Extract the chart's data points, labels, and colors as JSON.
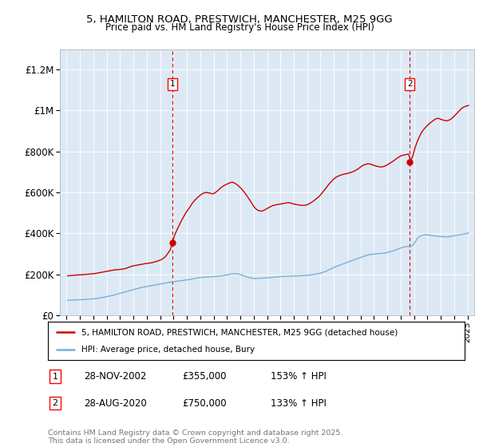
{
  "title_line1": "5, HAMILTON ROAD, PRESTWICH, MANCHESTER, M25 9GG",
  "title_line2": "Price paid vs. HM Land Registry's House Price Index (HPI)",
  "ylim": [
    0,
    1300000
  ],
  "yticks": [
    0,
    200000,
    400000,
    600000,
    800000,
    1000000,
    1200000
  ],
  "ytick_labels": [
    "£0",
    "£200K",
    "£400K",
    "£600K",
    "£800K",
    "£1M",
    "£1.2M"
  ],
  "plot_bg_color": "#dce9f5",
  "red_color": "#cc0000",
  "blue_color": "#7ab0d4",
  "marker1_year": 2002.92,
  "marker2_year": 2020.67,
  "marker1_label": "1",
  "marker2_label": "2",
  "marker1_date": "28-NOV-2002",
  "marker1_price": "£355,000",
  "marker1_hpi": "153% ↑ HPI",
  "marker1_value": 355000,
  "marker2_date": "28-AUG-2020",
  "marker2_price": "£750,000",
  "marker2_hpi": "133% ↑ HPI",
  "marker2_value": 750000,
  "legend_label_red": "5, HAMILTON ROAD, PRESTWICH, MANCHESTER, M25 9GG (detached house)",
  "legend_label_blue": "HPI: Average price, detached house, Bury",
  "footer_text": "Contains HM Land Registry data © Crown copyright and database right 2025.\nThis data is licensed under the Open Government Licence v3.0.",
  "red_x": [
    1995.08,
    1995.25,
    1995.42,
    1995.58,
    1995.75,
    1995.92,
    1996.08,
    1996.25,
    1996.42,
    1996.58,
    1996.75,
    1996.92,
    1997.08,
    1997.25,
    1997.42,
    1997.58,
    1997.75,
    1997.92,
    1998.08,
    1998.25,
    1998.42,
    1998.58,
    1998.75,
    1998.92,
    1999.08,
    1999.25,
    1999.42,
    1999.58,
    1999.75,
    1999.92,
    2000.08,
    2000.25,
    2000.42,
    2000.58,
    2000.75,
    2000.92,
    2001.08,
    2001.25,
    2001.42,
    2001.58,
    2001.75,
    2001.92,
    2002.08,
    2002.25,
    2002.42,
    2002.58,
    2002.75,
    2002.92,
    2003.08,
    2003.25,
    2003.42,
    2003.58,
    2003.75,
    2003.92,
    2004.08,
    2004.25,
    2004.42,
    2004.58,
    2004.75,
    2004.92,
    2005.08,
    2005.25,
    2005.42,
    2005.58,
    2005.75,
    2005.92,
    2006.08,
    2006.25,
    2006.42,
    2006.58,
    2006.75,
    2006.92,
    2007.08,
    2007.25,
    2007.42,
    2007.58,
    2007.75,
    2007.92,
    2008.08,
    2008.25,
    2008.42,
    2008.58,
    2008.75,
    2008.92,
    2009.08,
    2009.25,
    2009.42,
    2009.58,
    2009.75,
    2009.92,
    2010.08,
    2010.25,
    2010.42,
    2010.58,
    2010.75,
    2010.92,
    2011.08,
    2011.25,
    2011.42,
    2011.58,
    2011.75,
    2011.92,
    2012.08,
    2012.25,
    2012.42,
    2012.58,
    2012.75,
    2012.92,
    2013.08,
    2013.25,
    2013.42,
    2013.58,
    2013.75,
    2013.92,
    2014.08,
    2014.25,
    2014.42,
    2014.58,
    2014.75,
    2014.92,
    2015.08,
    2015.25,
    2015.42,
    2015.58,
    2015.75,
    2015.92,
    2016.08,
    2016.25,
    2016.42,
    2016.58,
    2016.75,
    2016.92,
    2017.08,
    2017.25,
    2017.42,
    2017.58,
    2017.75,
    2017.92,
    2018.08,
    2018.25,
    2018.42,
    2018.58,
    2018.75,
    2018.92,
    2019.08,
    2019.25,
    2019.42,
    2019.58,
    2019.75,
    2019.92,
    2020.08,
    2020.25,
    2020.42,
    2020.58,
    2020.75,
    2020.92,
    2021.08,
    2021.25,
    2021.42,
    2021.58,
    2021.75,
    2021.92,
    2022.08,
    2022.25,
    2022.42,
    2022.58,
    2022.75,
    2022.92,
    2023.08,
    2023.25,
    2023.42,
    2023.58,
    2023.75,
    2023.92,
    2024.08,
    2024.25,
    2024.42,
    2024.58,
    2024.75,
    2024.92,
    2025.08
  ],
  "red_y": [
    192000,
    193000,
    194000,
    195000,
    196000,
    197000,
    197000,
    198000,
    199000,
    200000,
    201000,
    202000,
    203000,
    205000,
    207000,
    209000,
    211000,
    213000,
    215000,
    217000,
    219000,
    221000,
    222000,
    223000,
    224000,
    226000,
    228000,
    232000,
    236000,
    240000,
    242000,
    244000,
    246000,
    248000,
    250000,
    252000,
    253000,
    255000,
    257000,
    260000,
    263000,
    267000,
    271000,
    278000,
    288000,
    302000,
    318000,
    355000,
    390000,
    415000,
    438000,
    460000,
    480000,
    500000,
    515000,
    530000,
    548000,
    560000,
    572000,
    582000,
    590000,
    596000,
    600000,
    598000,
    596000,
    592000,
    597000,
    605000,
    615000,
    625000,
    632000,
    638000,
    643000,
    648000,
    650000,
    645000,
    638000,
    628000,
    618000,
    605000,
    590000,
    575000,
    558000,
    540000,
    525000,
    515000,
    510000,
    508000,
    512000,
    518000,
    524000,
    530000,
    535000,
    538000,
    540000,
    542000,
    544000,
    546000,
    548000,
    550000,
    548000,
    545000,
    542000,
    540000,
    538000,
    537000,
    536000,
    538000,
    542000,
    548000,
    555000,
    563000,
    572000,
    582000,
    594000,
    608000,
    622000,
    636000,
    649000,
    661000,
    670000,
    677000,
    682000,
    686000,
    689000,
    691000,
    694000,
    697000,
    701000,
    706000,
    712000,
    720000,
    728000,
    734000,
    738000,
    740000,
    738000,
    734000,
    730000,
    727000,
    725000,
    724000,
    727000,
    732000,
    738000,
    745000,
    752000,
    760000,
    768000,
    775000,
    780000,
    783000,
    785000,
    787000,
    756000,
    780000,
    820000,
    850000,
    875000,
    895000,
    910000,
    922000,
    932000,
    942000,
    950000,
    958000,
    962000,
    960000,
    955000,
    952000,
    950000,
    952000,
    958000,
    967000,
    978000,
    990000,
    1002000,
    1012000,
    1018000,
    1022000,
    1025000
  ],
  "blue_x": [
    1995.08,
    1995.25,
    1995.42,
    1995.58,
    1995.75,
    1995.92,
    1996.08,
    1996.25,
    1996.42,
    1996.58,
    1996.75,
    1996.92,
    1997.08,
    1997.25,
    1997.42,
    1997.58,
    1997.75,
    1997.92,
    1998.08,
    1998.25,
    1998.42,
    1998.58,
    1998.75,
    1998.92,
    1999.08,
    1999.25,
    1999.42,
    1999.58,
    1999.75,
    1999.92,
    2000.08,
    2000.25,
    2000.42,
    2000.58,
    2000.75,
    2000.92,
    2001.08,
    2001.25,
    2001.42,
    2001.58,
    2001.75,
    2001.92,
    2002.08,
    2002.25,
    2002.42,
    2002.58,
    2002.75,
    2002.92,
    2003.08,
    2003.25,
    2003.42,
    2003.58,
    2003.75,
    2003.92,
    2004.08,
    2004.25,
    2004.42,
    2004.58,
    2004.75,
    2004.92,
    2005.08,
    2005.25,
    2005.42,
    2005.58,
    2005.75,
    2005.92,
    2006.08,
    2006.25,
    2006.42,
    2006.58,
    2006.75,
    2006.92,
    2007.08,
    2007.25,
    2007.42,
    2007.58,
    2007.75,
    2007.92,
    2008.08,
    2008.25,
    2008.42,
    2008.58,
    2008.75,
    2008.92,
    2009.08,
    2009.25,
    2009.42,
    2009.58,
    2009.75,
    2009.92,
    2010.08,
    2010.25,
    2010.42,
    2010.58,
    2010.75,
    2010.92,
    2011.08,
    2011.25,
    2011.42,
    2011.58,
    2011.75,
    2011.92,
    2012.08,
    2012.25,
    2012.42,
    2012.58,
    2012.75,
    2012.92,
    2013.08,
    2013.25,
    2013.42,
    2013.58,
    2013.75,
    2013.92,
    2014.08,
    2014.25,
    2014.42,
    2014.58,
    2014.75,
    2014.92,
    2015.08,
    2015.25,
    2015.42,
    2015.58,
    2015.75,
    2015.92,
    2016.08,
    2016.25,
    2016.42,
    2016.58,
    2016.75,
    2016.92,
    2017.08,
    2017.25,
    2017.42,
    2017.58,
    2017.75,
    2017.92,
    2018.08,
    2018.25,
    2018.42,
    2018.58,
    2018.75,
    2018.92,
    2019.08,
    2019.25,
    2019.42,
    2019.58,
    2019.75,
    2019.92,
    2020.08,
    2020.25,
    2020.42,
    2020.58,
    2020.75,
    2020.92,
    2021.08,
    2021.25,
    2021.42,
    2021.58,
    2021.75,
    2021.92,
    2022.08,
    2022.25,
    2022.42,
    2022.58,
    2022.75,
    2022.92,
    2023.08,
    2023.25,
    2023.42,
    2023.58,
    2023.75,
    2023.92,
    2024.08,
    2024.25,
    2024.42,
    2024.58,
    2024.75,
    2024.92,
    2025.08
  ],
  "blue_y": [
    72000,
    73000,
    73500,
    74000,
    74500,
    75000,
    75500,
    76000,
    76800,
    77600,
    78400,
    79200,
    80200,
    81500,
    83000,
    85000,
    87000,
    89000,
    91000,
    93500,
    96000,
    99000,
    102000,
    105000,
    108000,
    111000,
    114000,
    117000,
    120000,
    123000,
    126000,
    129000,
    132000,
    135000,
    137000,
    139000,
    141000,
    143000,
    145000,
    147000,
    149000,
    151000,
    153000,
    155000,
    157000,
    159000,
    161000,
    163000,
    164000,
    165500,
    167000,
    168500,
    170000,
    171500,
    173000,
    175000,
    177000,
    179000,
    181000,
    183000,
    184000,
    185000,
    186000,
    186500,
    187000,
    187500,
    188000,
    189000,
    190500,
    192000,
    194000,
    196000,
    198000,
    200000,
    202000,
    202500,
    202000,
    200000,
    197000,
    193000,
    189000,
    185000,
    182000,
    180000,
    179000,
    179500,
    180000,
    180500,
    181000,
    182000,
    183000,
    184000,
    185000,
    186000,
    187000,
    188000,
    188500,
    189000,
    189500,
    190000,
    190500,
    191000,
    191500,
    192000,
    192500,
    193000,
    193500,
    194000,
    195000,
    196500,
    198000,
    200000,
    202000,
    204000,
    207000,
    211000,
    215000,
    220000,
    225000,
    230000,
    235000,
    240000,
    244000,
    248000,
    252000,
    256000,
    260000,
    264000,
    268000,
    272000,
    276000,
    280000,
    284000,
    288000,
    292000,
    295000,
    297000,
    298000,
    299000,
    300000,
    301000,
    302000,
    303000,
    305000,
    308000,
    311000,
    314000,
    318000,
    322000,
    326000,
    330000,
    333000,
    335000,
    336000,
    338000,
    342000,
    358000,
    375000,
    385000,
    390000,
    392000,
    393000,
    392000,
    390000,
    388000,
    387000,
    386000,
    385000,
    384000,
    383000,
    383000,
    384000,
    385000,
    387000,
    389000,
    391000,
    393000,
    395000,
    397000,
    399000,
    401000
  ],
  "xticks": [
    1995,
    1996,
    1997,
    1998,
    1999,
    2000,
    2001,
    2002,
    2003,
    2004,
    2005,
    2006,
    2007,
    2008,
    2009,
    2010,
    2011,
    2012,
    2013,
    2014,
    2015,
    2016,
    2017,
    2018,
    2019,
    2020,
    2021,
    2022,
    2023,
    2024,
    2025
  ],
  "xlim": [
    1994.5,
    2025.5
  ]
}
